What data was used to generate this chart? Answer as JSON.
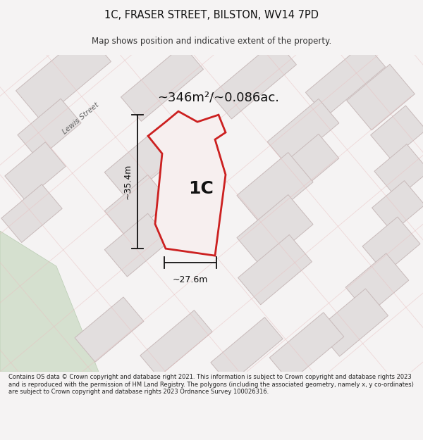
{
  "title": "1C, FRASER STREET, BILSTON, WV14 7PD",
  "subtitle": "Map shows position and indicative extent of the property.",
  "area_text": "~346m²/~0.086ac.",
  "label_1c": "1C",
  "dim_width": "~27.6m",
  "dim_height": "~35.4m",
  "footer": "Contains OS data © Crown copyright and database right 2021. This information is subject to Crown copyright and database rights 2023 and is reproduced with the permission of HM Land Registry. The polygons (including the associated geometry, namely x, y co-ordinates) are subject to Crown copyright and database rights 2023 Ordnance Survey 100026316.",
  "bg_color": "#f5f3f3",
  "map_bg": "#f0edec",
  "highlight_color": "#cc2020",
  "highlight_fill": "#f7efef",
  "building_fill": "#e2dede",
  "building_edge": "#c8baba",
  "road_line_color": "#e8c0c0",
  "green_fill": "#d0ddd0",
  "lewis_street_color": "#777777"
}
